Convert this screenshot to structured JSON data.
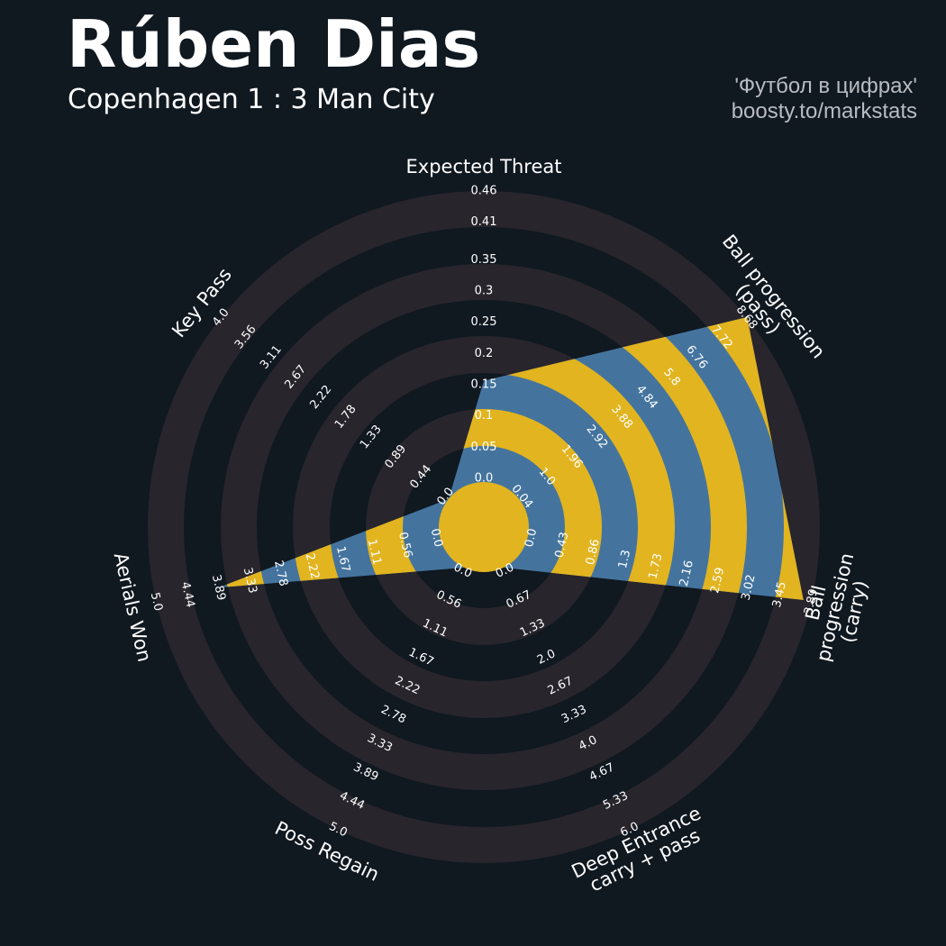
{
  "chart_data": {
    "type": "radar",
    "title": "Rúben Dias",
    "subtitle": "Copenhagen 1 : 3 Man City",
    "credits": [
      "'Футбол в цифрах'",
      "boosty.to/markstats"
    ],
    "categories": [
      "Expected Threat",
      "Ball progression (pass)",
      "Ball progression (carry)",
      "Deep Entrance\ncarry + pass",
      "Poss Regain",
      "Aerials Won",
      "Key Pass"
    ],
    "values": [
      0.16,
      8.7,
      3.78,
      0,
      0,
      3.9,
      0
    ],
    "radar_color": "#44749e",
    "ring_color": "#e2b41f",
    "band_color": "#28252c",
    "axes": [
      {
        "lim": [
          0,
          0.46
        ],
        "ticks": [
          {
            "value": 0,
            "label": "0.0"
          },
          0.05,
          0.1,
          0.15,
          0.2,
          0.25,
          0.3,
          0.35,
          0.41,
          0.46
        ]
      },
      {
        "lim": [
          0.04,
          8.68
        ],
        "ticks": [
          0.04,
          {
            "value": 1,
            "label": "1.0"
          },
          1.96,
          2.92,
          3.88,
          4.84,
          5.8,
          6.76,
          7.72,
          8.68
        ]
      },
      {
        "lim": [
          0,
          3.89
        ],
        "ticks": [
          {
            "value": 0,
            "label": "0.0"
          },
          0.43,
          0.86,
          1.3,
          1.73,
          2.16,
          2.59,
          3.02,
          3.45,
          3.89
        ]
      },
      {
        "lim": [
          0,
          6
        ],
        "ticks": [
          {
            "value": 0,
            "label": "0.0"
          },
          0.67,
          1.33,
          {
            "value": 2,
            "label": "2.0"
          },
          2.67,
          3.33,
          {
            "value": 4,
            "label": "4.0"
          },
          4.67,
          5.33,
          {
            "value": 6,
            "label": "6.0"
          }
        ]
      },
      {
        "lim": [
          0,
          5
        ],
        "ticks": [
          {
            "value": 0,
            "label": "0.0"
          },
          0.56,
          1.11,
          1.67,
          2.22,
          2.78,
          3.33,
          3.89,
          4.44,
          {
            "value": 5,
            "label": "5.0"
          }
        ]
      },
      {
        "lim": [
          0,
          5
        ],
        "ticks": [
          {
            "value": 0,
            "label": "0.0"
          },
          0.56,
          1.11,
          1.67,
          2.22,
          2.78,
          3.33,
          3.89,
          4.44,
          {
            "value": 5,
            "label": "5.0"
          }
        ]
      },
      {
        "lim": [
          0,
          4
        ],
        "ticks": [
          {
            "value": 0,
            "label": "0.0"
          },
          0.44,
          0.89,
          1.33,
          1.78,
          2.22,
          2.67,
          3.11,
          3.56,
          {
            "value": 4,
            "label": "4.0"
          }
        ]
      }
    ]
  }
}
